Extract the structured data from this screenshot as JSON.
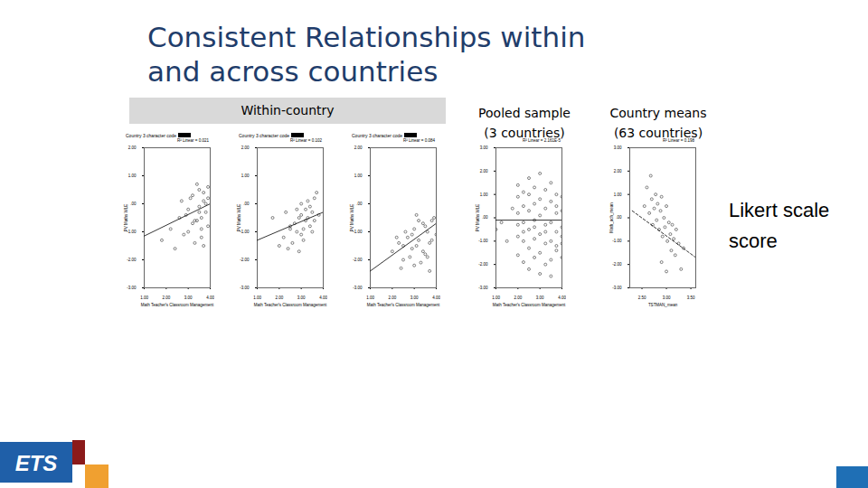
{
  "slide": {
    "title": [
      "Consistent Relationships within",
      "and across countries"
    ],
    "band_label": "Within-country",
    "column_labels": [
      [
        "Pooled sample",
        "(3 countries)"
      ],
      [
        "Country means",
        "(63 countries)"
      ]
    ],
    "side_note": [
      "Likert scale",
      "score"
    ],
    "logo_text": "ETS"
  },
  "chart_data": [
    {
      "type": "scatter",
      "title": "Country 3 character code",
      "annotation": "R² Linear = 0.021",
      "xlabel": "Math Teacher's Classroom Management",
      "ylabel": "PV Maths WLE",
      "marker": "circle",
      "color": "#333333",
      "x": [
        3.0,
        3.2,
        3.4,
        3.5,
        3.6,
        3.7,
        3.8,
        3.9,
        2.8,
        2.6,
        3.3,
        3.5,
        3.7,
        3.9,
        3.1,
        2.9,
        3.6,
        3.8,
        2.4,
        3.4,
        3.2,
        3.6,
        3.0,
        2.2,
        3.7,
        3.9,
        3.5,
        2.7,
        3.3,
        1.8
      ],
      "values": [
        -0.2,
        0.3,
        -0.6,
        0.5,
        -0.9,
        0.1,
        -0.3,
        0.6,
        -1.1,
        -0.5,
        -1.4,
        -0.1,
        0.4,
        -0.8,
        0.2,
        -0.4,
        -1.2,
        0.0,
        -1.6,
        0.7,
        -0.7,
        -0.5,
        -1.0,
        -0.9,
        -1.5,
        0.2,
        -0.3,
        0.1,
        -0.6,
        -1.3
      ],
      "fit": {
        "x": [
          1,
          4
        ],
        "values": [
          -1.15,
          0.0
        ],
        "line_style": "solid"
      },
      "xlim": [
        1,
        4
      ],
      "ylim": [
        -3,
        2
      ],
      "xticks": [
        {
          "value": 1,
          "label": "1.00"
        },
        {
          "value": 2,
          "label": "2.00"
        },
        {
          "value": 3,
          "label": "3.00"
        },
        {
          "value": 4,
          "label": "4.00"
        }
      ],
      "yticks": [
        {
          "value": -3,
          "label": "-3.00"
        },
        {
          "value": -2,
          "label": "-2.00"
        },
        {
          "value": -1,
          "label": "-1.00"
        },
        {
          "value": 0,
          "label": ".00"
        },
        {
          "value": 1,
          "label": "1.00"
        },
        {
          "value": 2,
          "label": "2.00"
        }
      ]
    },
    {
      "type": "scatter",
      "title": "Country 3 character code",
      "annotation": "R² Linear = 0.102",
      "xlabel": "Math Teacher's Classroom Management",
      "ylabel": "PV Maths WLE",
      "marker": "circle",
      "color": "#333333",
      "x": [
        2.2,
        2.5,
        2.8,
        3.0,
        3.2,
        3.4,
        3.6,
        2.6,
        2.9,
        3.1,
        3.3,
        3.5,
        2.4,
        2.7,
        3.0,
        3.2,
        3.4,
        3.7,
        2.0,
        2.3,
        2.8,
        3.1,
        3.3,
        3.6,
        2.5,
        2.9,
        3.0,
        3.5,
        3.8,
        1.7
      ],
      "values": [
        -1.2,
        -0.8,
        -1.0,
        -0.4,
        -0.6,
        -0.1,
        0.2,
        -1.4,
        -0.5,
        -0.9,
        0.1,
        -0.3,
        -1.6,
        -0.7,
        -1.1,
        -0.2,
        -0.8,
        0.4,
        -1.5,
        -0.3,
        -0.2,
        -1.3,
        -0.5,
        -0.6,
        -0.9,
        -1.7,
        0.0,
        -1.0,
        -0.4,
        -0.5
      ],
      "fit": {
        "x": [
          1,
          4
        ],
        "values": [
          -1.3,
          -0.3
        ],
        "line_style": "solid"
      },
      "xlim": [
        1,
        4
      ],
      "ylim": [
        -3,
        2
      ],
      "xticks": [
        {
          "value": 1,
          "label": "1.00"
        },
        {
          "value": 2,
          "label": "2.00"
        },
        {
          "value": 3,
          "label": "3.00"
        },
        {
          "value": 4,
          "label": "4.00"
        }
      ],
      "yticks": [
        {
          "value": -3,
          "label": "-3.00"
        },
        {
          "value": -2,
          "label": "-2.00"
        },
        {
          "value": -1,
          "label": "-1.00"
        },
        {
          "value": 0,
          "label": ".00"
        },
        {
          "value": 1,
          "label": "1.00"
        },
        {
          "value": 2,
          "label": "2.00"
        }
      ]
    },
    {
      "type": "scatter",
      "title": "Country 3 character code",
      "annotation": "R² Linear = 0.084",
      "xlabel": "Math Teacher's Classroom Management",
      "ylabel": "PV Maths WLE",
      "marker": "circle",
      "color": "#333333",
      "x": [
        2.0,
        2.3,
        2.5,
        2.7,
        2.9,
        3.0,
        3.2,
        3.4,
        3.5,
        3.6,
        3.8,
        4.0,
        2.4,
        2.6,
        2.8,
        3.1,
        3.3,
        3.5,
        3.7,
        3.9,
        2.2,
        2.9,
        3.0,
        3.2,
        3.4,
        3.6,
        3.8,
        2.5,
        3.1,
        3.7
      ],
      "values": [
        -1.7,
        -1.4,
        -2.0,
        -1.2,
        -1.6,
        -0.9,
        -1.3,
        -0.7,
        -1.8,
        -1.0,
        -0.6,
        -1.1,
        -2.3,
        -1.0,
        -1.9,
        -1.5,
        -2.1,
        -0.8,
        -1.4,
        -0.5,
        -1.2,
        -1.1,
        -2.2,
        -0.6,
        -1.7,
        -1.9,
        -1.3,
        -1.5,
        -0.4,
        -2.4
      ],
      "fit": {
        "x": [
          1,
          4
        ],
        "values": [
          -2.4,
          -0.7
        ],
        "line_style": "solid"
      },
      "xlim": [
        1,
        4
      ],
      "ylim": [
        -3,
        2
      ],
      "xticks": [
        {
          "value": 1,
          "label": "1.00"
        },
        {
          "value": 2,
          "label": "2.00"
        },
        {
          "value": 3,
          "label": "3.00"
        },
        {
          "value": 4,
          "label": "4.00"
        }
      ],
      "yticks": [
        {
          "value": -3,
          "label": "-3.00"
        },
        {
          "value": -2,
          "label": "-2.00"
        },
        {
          "value": -1,
          "label": "-1.00"
        },
        {
          "value": 0,
          "label": ".00"
        },
        {
          "value": 1,
          "label": "1.00"
        },
        {
          "value": 2,
          "label": "2.00"
        }
      ]
    },
    {
      "type": "scatter",
      "annotation": "R² Linear = 2.161E-5",
      "xlabel": "Math Teacher's Classroom Management",
      "ylabel": "PV Maths WLE",
      "marker": "circle",
      "color": "#333333",
      "x": [
        2.0,
        2.0,
        2.0,
        2.0,
        2.0,
        2.0,
        2.25,
        2.25,
        2.25,
        2.25,
        2.25,
        2.25,
        2.5,
        2.5,
        2.5,
        2.5,
        2.5,
        2.5,
        2.75,
        2.75,
        2.75,
        2.75,
        2.75,
        2.75,
        3.0,
        3.0,
        3.0,
        3.0,
        3.0,
        3.0,
        3.25,
        3.25,
        3.25,
        3.25,
        3.25,
        3.25,
        3.5,
        3.5,
        3.5,
        3.5,
        3.5,
        3.5,
        3.75,
        3.75,
        3.75,
        3.75,
        3.75,
        3.75,
        4.0,
        4.0,
        4.0,
        4.0,
        4.0,
        4.0,
        1.0,
        1.5,
        1.75,
        1.25
      ],
      "values": [
        -1.6,
        -0.8,
        0.2,
        0.9,
        -0.3,
        1.4,
        -1.9,
        -1.0,
        -0.2,
        0.5,
        1.1,
        -0.6,
        -2.2,
        -1.3,
        -0.5,
        0.3,
        1.0,
        1.7,
        -1.7,
        -0.9,
        -0.1,
        0.6,
        1.3,
        -0.4,
        -2.4,
        -1.5,
        -0.7,
        0.1,
        0.8,
        1.9,
        -2.0,
        -1.1,
        -0.3,
        0.4,
        1.2,
        -0.6,
        -1.8,
        -1.0,
        -0.2,
        0.7,
        1.5,
        -2.5,
        -1.4,
        -0.6,
        0.2,
        1.0,
        -1.2,
        0.5,
        -1.1,
        -0.4,
        0.3,
        0.9,
        -1.7,
        -0.8,
        -0.5,
        -1.0,
        0.4,
        -0.2
      ],
      "fit": {
        "x": [
          1,
          4
        ],
        "values": [
          -0.1,
          -0.1
        ],
        "line_style": "solid"
      },
      "xlim": [
        1,
        4
      ],
      "ylim": [
        -3,
        3
      ],
      "xticks": [
        {
          "value": 1,
          "label": "1.00"
        },
        {
          "value": 2,
          "label": "2.00"
        },
        {
          "value": 3,
          "label": "3.00"
        },
        {
          "value": 4,
          "label": "4.00"
        }
      ],
      "yticks": [
        {
          "value": -3,
          "label": "-3.00"
        },
        {
          "value": -2,
          "label": "-2.00"
        },
        {
          "value": -1,
          "label": "-1.00"
        },
        {
          "value": 0,
          "label": ".00"
        },
        {
          "value": 1,
          "label": "1.00"
        },
        {
          "value": 2,
          "label": "2.00"
        },
        {
          "value": 3,
          "label": "3.00"
        }
      ]
    },
    {
      "type": "scatter",
      "annotation": "R² Linear = 0.198",
      "xlabel": "TSTMAN_mean",
      "ylabel": "Math_ach_mean",
      "marker": "circle",
      "color": "#333333",
      "x": [
        2.55,
        2.6,
        2.65,
        2.7,
        2.72,
        2.75,
        2.78,
        2.8,
        2.82,
        2.85,
        2.88,
        2.9,
        2.92,
        2.95,
        2.97,
        3.0,
        3.02,
        3.05,
        3.08,
        3.1,
        3.12,
        3.15,
        3.18,
        3.2,
        3.25,
        3.3,
        3.35,
        2.68,
        2.9,
        3.0
      ],
      "values": [
        0.5,
        1.3,
        0.2,
        0.8,
        -0.3,
        0.4,
        1.0,
        -0.1,
        0.6,
        -0.5,
        0.3,
        0.9,
        -0.8,
        0.0,
        -0.4,
        0.5,
        -1.0,
        -0.2,
        -0.7,
        -1.4,
        -0.3,
        -0.9,
        -1.6,
        -0.5,
        -1.1,
        -2.2,
        -1.3,
        1.8,
        -1.9,
        -2.3
      ],
      "fit": {
        "x": [
          2.3,
          3.6
        ],
        "values": [
          0.3,
          -1.7
        ],
        "line_style": "dashed"
      },
      "xlim": [
        2.25,
        3.6
      ],
      "ylim": [
        -3,
        3
      ],
      "xticks": [
        {
          "value": 2.5,
          "label": "2.50"
        },
        {
          "value": 3,
          "label": "3.00"
        },
        {
          "value": 3.5,
          "label": "3.50"
        }
      ],
      "yticks": [
        {
          "value": -3,
          "label": "-3.00"
        },
        {
          "value": -2,
          "label": "-2.00"
        },
        {
          "value": -1,
          "label": "-1.00"
        },
        {
          "value": 0,
          "label": ".00"
        },
        {
          "value": 1,
          "label": "1.00"
        },
        {
          "value": 2,
          "label": "2.00"
        },
        {
          "value": 3,
          "label": "3.00"
        }
      ]
    }
  ]
}
